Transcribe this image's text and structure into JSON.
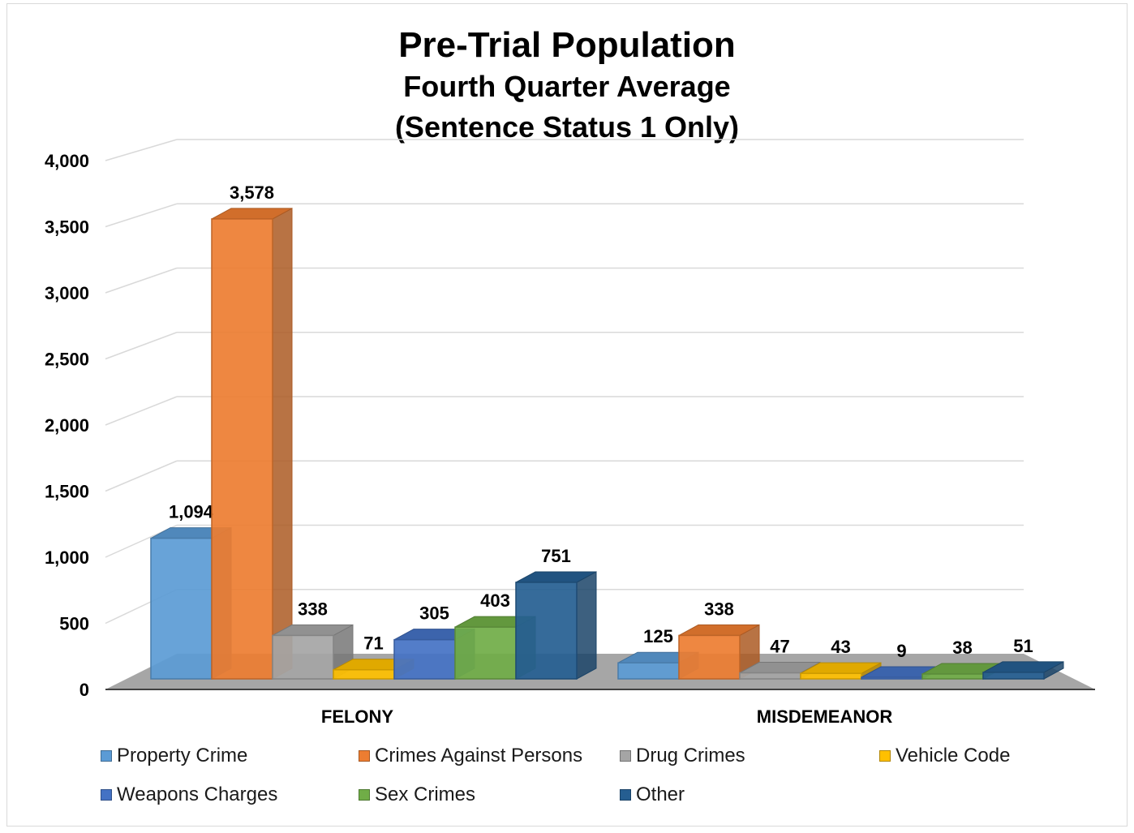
{
  "chart_data": {
    "type": "bar",
    "title": "Pre-Trial Population",
    "subtitle_line1": "Fourth Quarter Average",
    "subtitle_line2": "(Sentence Status 1 Only)",
    "categories": [
      "FELONY",
      "MISDEMEANOR"
    ],
    "series": [
      {
        "name": "Property Crime",
        "values": [
          1094,
          125
        ],
        "color": "#5B9BD5"
      },
      {
        "name": "Crimes Against Persons",
        "values": [
          3578,
          338
        ],
        "color": "#ED7D31"
      },
      {
        "name": "Drug Crimes",
        "values": [
          338,
          47
        ],
        "color": "#A5A5A5"
      },
      {
        "name": "Vehicle Code",
        "values": [
          71,
          43
        ],
        "color": "#FFC000"
      },
      {
        "name": "Weapons Charges",
        "values": [
          305,
          9
        ],
        "color": "#4472C4"
      },
      {
        "name": "Sex Crimes",
        "values": [
          403,
          38
        ],
        "color": "#70AD47"
      },
      {
        "name": "Other",
        "values": [
          751,
          51
        ],
        "color": "#255E91"
      }
    ],
    "data_labels": [
      [
        "1,094",
        "125"
      ],
      [
        "3,578",
        "338"
      ],
      [
        "338",
        "47"
      ],
      [
        "71",
        "43"
      ],
      [
        "305",
        "9"
      ],
      [
        "403",
        "38"
      ],
      [
        "751",
        "51"
      ]
    ],
    "y_ticks": [
      "0",
      "500",
      "1,000",
      "1,500",
      "2,000",
      "2,500",
      "3,000",
      "3,500",
      "4,000"
    ],
    "ylim": [
      0,
      4000
    ],
    "grid": true,
    "legend_position": "bottom",
    "style": "3d-clustered-column"
  }
}
